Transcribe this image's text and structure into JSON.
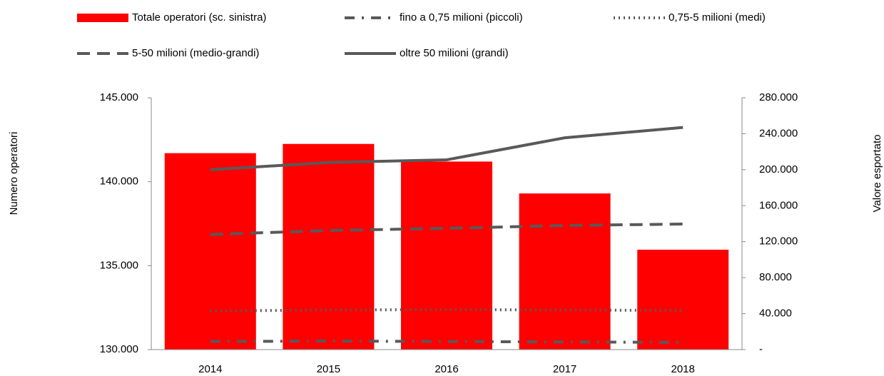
{
  "chart_data": {
    "type": "bar_line",
    "categories": [
      "2014",
      "2015",
      "2016",
      "2017",
      "2018"
    ],
    "ylabel": "Numero operatori",
    "y2label": "Valore esportato",
    "ylim": [
      130000,
      145000
    ],
    "yticks": [
      {
        "value": 130000,
        "label": "130.000"
      },
      {
        "value": 135000,
        "label": "135.000"
      },
      {
        "value": 140000,
        "label": "140.000"
      },
      {
        "value": 145000,
        "label": "145.000"
      }
    ],
    "y2lim": [
      0,
      280000
    ],
    "y2ticks": [
      {
        "value": 0,
        "label": "-"
      },
      {
        "value": 40000,
        "label": "40.000"
      },
      {
        "value": 80000,
        "label": "80.000"
      },
      {
        "value": 120000,
        "label": "120.000"
      },
      {
        "value": 160000,
        "label": "160.000"
      },
      {
        "value": 200000,
        "label": "200.000"
      },
      {
        "value": 240000,
        "label": "240.000"
      },
      {
        "value": 280000,
        "label": "280.000"
      }
    ],
    "legend": "top",
    "series": [
      {
        "name": "Totale operatori (sc. sinistra)",
        "type": "bar",
        "color": "#ff0000",
        "values": [
          141700,
          142250,
          141200,
          139300,
          135950
        ]
      },
      {
        "name": "fino a 0,75 milioni (piccoli)",
        "type": "line",
        "style": "dashdot",
        "axis": "y2",
        "color": "#595959",
        "values": [
          9000,
          9500,
          9000,
          8500,
          8000
        ]
      },
      {
        "name": "0,75-5 milioni (medi)",
        "type": "line",
        "style": "dotted",
        "axis": "y2",
        "color": "#595959",
        "values": [
          43000,
          44000,
          44500,
          44000,
          43500
        ]
      },
      {
        "name": "5-50 milioni (medio-grandi)",
        "type": "line",
        "style": "dashed",
        "axis": "y2",
        "color": "#595959",
        "values": [
          128000,
          132400,
          134800,
          138000,
          139600
        ]
      },
      {
        "name": "oltre 50 milioni (grandi)",
        "type": "line",
        "style": "solid",
        "axis": "y2",
        "color": "#595959",
        "values": [
          200000,
          208000,
          211000,
          235500,
          247000
        ]
      }
    ]
  }
}
